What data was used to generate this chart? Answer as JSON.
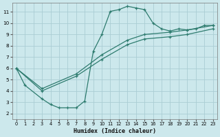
{
  "xlabel": "Humidex (Indice chaleur)",
  "bg_color": "#cce8ec",
  "line_color": "#2d7b6e",
  "grid_color": "#aacdd4",
  "xlim": [
    -0.5,
    23.5
  ],
  "ylim": [
    1.5,
    11.8
  ],
  "yticks": [
    2,
    3,
    4,
    5,
    6,
    7,
    8,
    9,
    10,
    11
  ],
  "xticks": [
    0,
    1,
    2,
    3,
    4,
    5,
    6,
    7,
    8,
    9,
    10,
    11,
    12,
    13,
    14,
    15,
    16,
    17,
    18,
    19,
    20,
    21,
    22,
    23
  ],
  "curve1_x": [
    0,
    1,
    3,
    4,
    5,
    6,
    7,
    8,
    9,
    10,
    11,
    12,
    13,
    14,
    15,
    16,
    17,
    18,
    19,
    20,
    21,
    22,
    23
  ],
  "curve1_y": [
    6.0,
    4.5,
    3.3,
    2.8,
    2.5,
    2.5,
    2.5,
    3.1,
    7.5,
    9.0,
    11.05,
    11.2,
    11.5,
    11.35,
    11.2,
    10.0,
    9.5,
    9.3,
    9.5,
    9.4,
    9.5,
    9.8,
    9.8
  ],
  "curve2_x": [
    0,
    3,
    7,
    10,
    13,
    15,
    18,
    20,
    23
  ],
  "curve2_y": [
    6.0,
    4.2,
    5.5,
    7.2,
    8.5,
    9.0,
    9.2,
    9.4,
    9.8
  ],
  "curve3_x": [
    0,
    3,
    7,
    10,
    13,
    15,
    18,
    20,
    23
  ],
  "curve3_y": [
    6.0,
    4.0,
    5.3,
    6.8,
    8.1,
    8.6,
    8.8,
    9.0,
    9.5
  ]
}
